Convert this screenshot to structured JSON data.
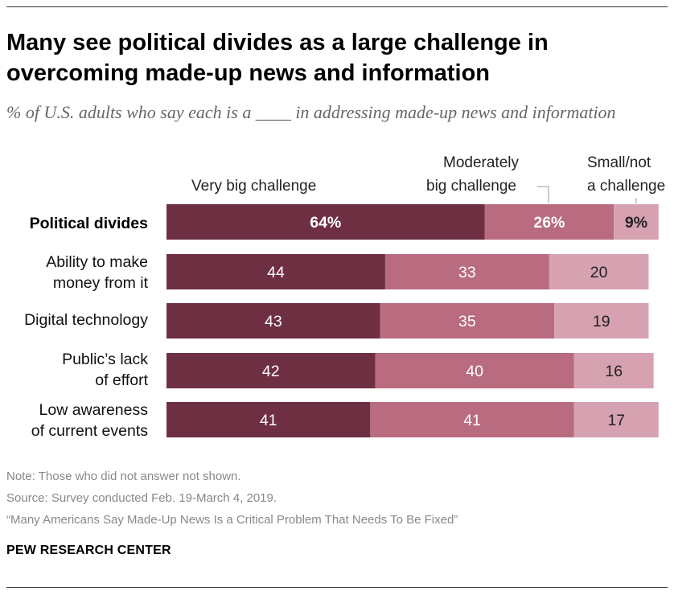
{
  "title": "Many see political divides as a large challenge in overcoming made-up news and information",
  "subtitle": "% of U.S. adults who say each is a ____ in addressing made-up news and information",
  "legend": {
    "very_big": "Very big challenge",
    "moderate_line1": "Moderately",
    "moderate_line2": "big challenge",
    "small_line1": "Small/not",
    "small_line2": "a challenge"
  },
  "colors": {
    "very_big": "#6e2f43",
    "moderate": "#b96b80",
    "small": "#d6a1b0"
  },
  "chart_data": {
    "type": "bar",
    "orientation": "horizontal",
    "stacked": true,
    "categories": [
      [
        "Political divides"
      ],
      [
        "Ability to make",
        "money from it"
      ],
      [
        "Digital technology"
      ],
      [
        "Public’s lack",
        "of effort"
      ],
      [
        "Low awareness",
        "of current events"
      ]
    ],
    "series": [
      {
        "name": "Very big challenge",
        "values": [
          64,
          44,
          43,
          42,
          41
        ],
        "labels": [
          "64%",
          "44",
          "43",
          "42",
          "41"
        ]
      },
      {
        "name": "Moderately big challenge",
        "values": [
          26,
          33,
          35,
          40,
          41
        ],
        "labels": [
          "26%",
          "33",
          "35",
          "40",
          "41"
        ]
      },
      {
        "name": "Small/not a challenge",
        "values": [
          9,
          20,
          19,
          16,
          17
        ],
        "labels": [
          "9%",
          "20",
          "19",
          "16",
          "17"
        ]
      }
    ],
    "highlight_category": 0,
    "xlim": [
      0,
      100
    ]
  },
  "footer": {
    "note": "Note: Those who did not answer not shown.",
    "source": "Source: Survey conducted Feb. 19-March 4, 2019.",
    "report": "“Many Americans Say Made-Up News Is a Critical Problem That Needs To Be Fixed”",
    "org": "PEW RESEARCH CENTER"
  }
}
